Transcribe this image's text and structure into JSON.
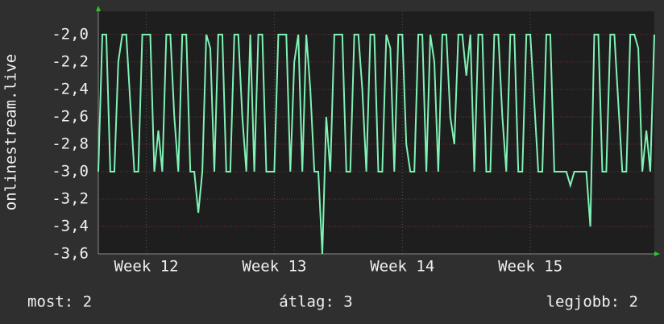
{
  "chart_data": {
    "type": "line",
    "y_label": "onlinestream.live",
    "x": [
      0,
      1,
      2,
      3,
      4,
      5,
      6,
      7,
      8,
      9,
      10,
      11,
      12,
      13,
      14,
      15,
      16,
      17,
      18,
      19,
      20,
      21,
      22,
      23,
      24,
      25,
      26,
      27,
      28,
      29,
      30,
      31,
      32,
      33,
      34,
      35,
      36,
      37,
      38,
      39,
      40,
      41,
      42,
      43,
      44,
      45,
      46,
      47,
      48,
      49,
      50,
      51,
      52,
      53,
      54,
      55,
      56,
      57,
      58,
      59,
      60,
      61,
      62,
      63,
      64,
      65,
      66,
      67,
      68,
      69,
      70,
      71,
      72,
      73,
      74,
      75,
      76,
      77,
      78,
      79,
      80,
      81,
      82,
      83,
      84,
      85,
      86,
      87,
      88,
      89,
      90,
      91,
      92,
      93,
      94,
      95,
      96,
      97,
      98,
      99,
      100,
      101,
      102,
      103,
      104,
      105,
      106,
      107,
      108,
      109,
      110,
      111,
      112,
      113,
      114,
      115,
      116,
      117,
      118,
      119,
      120,
      121,
      122,
      123,
      124,
      125,
      126,
      127,
      128,
      129,
      130,
      131,
      132,
      133,
      134,
      135,
      136,
      137,
      138,
      139
    ],
    "series": [
      {
        "name": "onlinestream.live",
        "color": "#7ff2b4",
        "values": [
          -3.0,
          -2.0,
          -2.0,
          -3.0,
          -3.0,
          -2.2,
          -2.0,
          -2.0,
          -2.5,
          -3.0,
          -3.0,
          -2.0,
          -2.0,
          -2.0,
          -3.0,
          -2.7,
          -3.0,
          -2.0,
          -2.0,
          -2.6,
          -3.0,
          -2.0,
          -2.0,
          -3.0,
          -3.0,
          -3.3,
          -3.0,
          -2.0,
          -2.1,
          -3.0,
          -2.0,
          -2.0,
          -3.0,
          -3.0,
          -2.0,
          -2.0,
          -2.6,
          -3.0,
          -2.0,
          -3.0,
          -2.0,
          -2.0,
          -3.0,
          -3.0,
          -3.0,
          -2.0,
          -2.0,
          -2.0,
          -3.0,
          -2.2,
          -2.0,
          -3.0,
          -2.0,
          -2.4,
          -3.0,
          -3.0,
          -3.6,
          -2.6,
          -3.0,
          -2.0,
          -2.0,
          -2.0,
          -3.0,
          -3.0,
          -2.0,
          -2.0,
          -2.4,
          -3.0,
          -2.0,
          -2.0,
          -3.0,
          -3.0,
          -2.0,
          -2.1,
          -3.0,
          -2.0,
          -2.0,
          -2.8,
          -3.0,
          -3.0,
          -2.0,
          -2.0,
          -3.0,
          -2.0,
          -2.2,
          -3.0,
          -2.0,
          -2.0,
          -2.6,
          -2.8,
          -2.0,
          -2.0,
          -2.3,
          -2.0,
          -3.0,
          -2.0,
          -2.0,
          -3.0,
          -3.0,
          -2.0,
          -2.0,
          -2.6,
          -3.0,
          -2.0,
          -2.0,
          -3.0,
          -3.0,
          -2.0,
          -2.0,
          -2.5,
          -3.0,
          -3.0,
          -2.0,
          -2.0,
          -3.0,
          -3.0,
          -3.0,
          -3.0,
          -3.1,
          -3.0,
          -3.0,
          -3.0,
          -3.0,
          -3.4,
          -2.0,
          -2.0,
          -3.0,
          -3.0,
          -2.0,
          -2.0,
          -2.5,
          -3.0,
          -3.0,
          -2.0,
          -2.0,
          -2.1,
          -3.0,
          -2.7,
          -3.0,
          -2.0
        ]
      }
    ],
    "xlim": [
      0,
      139
    ],
    "xticks": [
      {
        "value": 12,
        "label": "Week 12"
      },
      {
        "value": 44,
        "label": "Week 13"
      },
      {
        "value": 76,
        "label": "Week 14"
      },
      {
        "value": 108,
        "label": "Week 15"
      }
    ],
    "ylim": [
      -3.6,
      -1.83
    ],
    "yticks": [
      {
        "value": -2.0,
        "label": "-2,0"
      },
      {
        "value": -2.2,
        "label": "-2,2"
      },
      {
        "value": -2.4,
        "label": "-2,4"
      },
      {
        "value": -2.6,
        "label": "-2,6"
      },
      {
        "value": -2.8,
        "label": "-2,8"
      },
      {
        "value": -3.0,
        "label": "-3,0"
      },
      {
        "value": -3.2,
        "label": "-3,2"
      },
      {
        "value": -3.4,
        "label": "-3,4"
      },
      {
        "value": -3.6,
        "label": "-3,6"
      }
    ],
    "grid": true,
    "footer": [
      "most: 2",
      "átlag: 3",
      "legjobb: 2"
    ]
  }
}
